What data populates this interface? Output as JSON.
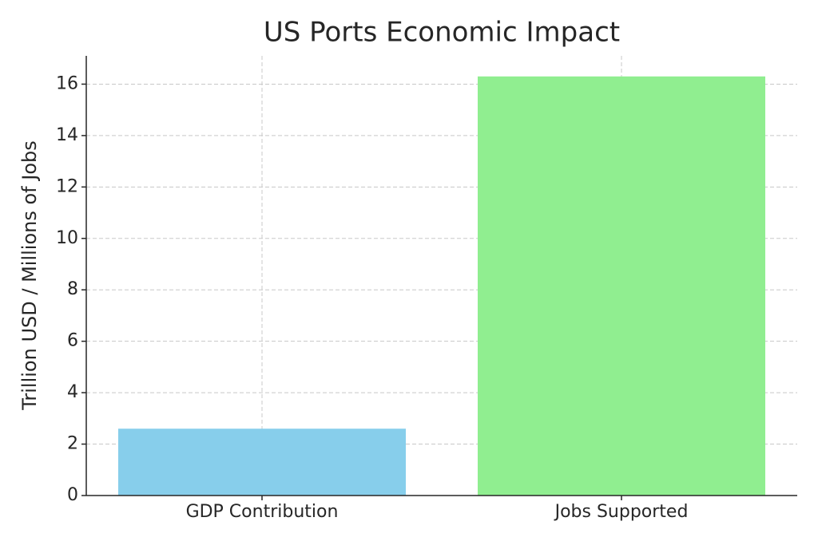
{
  "chart_data": {
    "type": "bar",
    "title": "US Ports Economic Impact",
    "y_label": "Trillion USD / Millions of Jobs",
    "categories": [
      "GDP Contribution",
      "Jobs Supported"
    ],
    "values": [
      2.6,
      16.3
    ],
    "colors": [
      "#87ceeb",
      "#90ee90"
    ],
    "ylim": [
      0,
      17.1
    ],
    "yticks": [
      0,
      2,
      4,
      6,
      8,
      10,
      12,
      14,
      16
    ],
    "grid": true
  }
}
